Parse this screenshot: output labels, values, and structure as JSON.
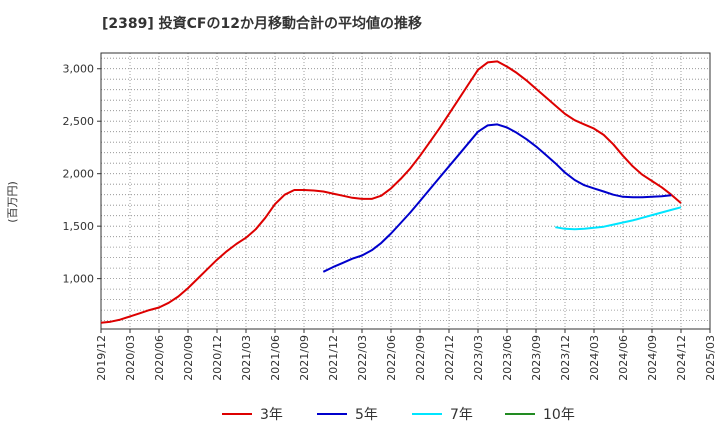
{
  "chart_data": {
    "type": "line",
    "title": "[2389]  投資CFの12か月移動合計の平均値の推移",
    "ylabel": "(百万円)",
    "xlabel": "",
    "ylim": [
      520,
      3150
    ],
    "y_ticks": [
      1000,
      1500,
      2000,
      2500,
      3000
    ],
    "y_tick_labels": [
      "1,000",
      "1,500",
      "2,000",
      "2,500",
      "3,000"
    ],
    "x_tick_labels": [
      "2019/12",
      "2020/03",
      "2020/06",
      "2020/09",
      "2020/12",
      "2021/03",
      "2021/06",
      "2021/09",
      "2021/12",
      "2022/03",
      "2022/06",
      "2022/09",
      "2022/12",
      "2023/03",
      "2023/06",
      "2023/09",
      "2023/12",
      "2024/03",
      "2024/06",
      "2024/09",
      "2024/12",
      "2025/03"
    ],
    "grid": true,
    "legend_position": "bottom",
    "series": [
      {
        "name": "3年",
        "color": "#dd0000",
        "start": "2019/12",
        "values": [
          580,
          590,
          610,
          640,
          670,
          700,
          725,
          770,
          830,
          910,
          1000,
          1090,
          1180,
          1260,
          1330,
          1390,
          1470,
          1580,
          1710,
          1800,
          1845,
          1845,
          1840,
          1830,
          1810,
          1790,
          1770,
          1760,
          1760,
          1790,
          1860,
          1950,
          2050,
          2170,
          2300,
          2430,
          2570,
          2710,
          2850,
          2990,
          3060,
          3070,
          3020,
          2960,
          2890,
          2810,
          2730,
          2650,
          2570,
          2510,
          2470,
          2430,
          2370,
          2280,
          2170,
          2070,
          1990,
          1930,
          1870,
          1800,
          1720
        ]
      },
      {
        "name": "5年",
        "color": "#0000cc",
        "start": "2021/11",
        "values": [
          1065,
          1110,
          1150,
          1190,
          1220,
          1270,
          1340,
          1430,
          1530,
          1630,
          1740,
          1850,
          1960,
          2070,
          2180,
          2290,
          2400,
          2460,
          2470,
          2440,
          2390,
          2330,
          2260,
          2180,
          2100,
          2010,
          1940,
          1890,
          1860,
          1830,
          1800,
          1780,
          1775,
          1775,
          1780,
          1785,
          1795
        ]
      },
      {
        "name": "7年",
        "color": "#00e5ff",
        "start": "2023/11",
        "values": [
          1490,
          1475,
          1470,
          1475,
          1485,
          1495,
          1515,
          1535,
          1555,
          1580,
          1605,
          1630,
          1655,
          1680
        ]
      },
      {
        "name": "10年",
        "color": "#228b22",
        "start": "",
        "values": []
      }
    ]
  }
}
